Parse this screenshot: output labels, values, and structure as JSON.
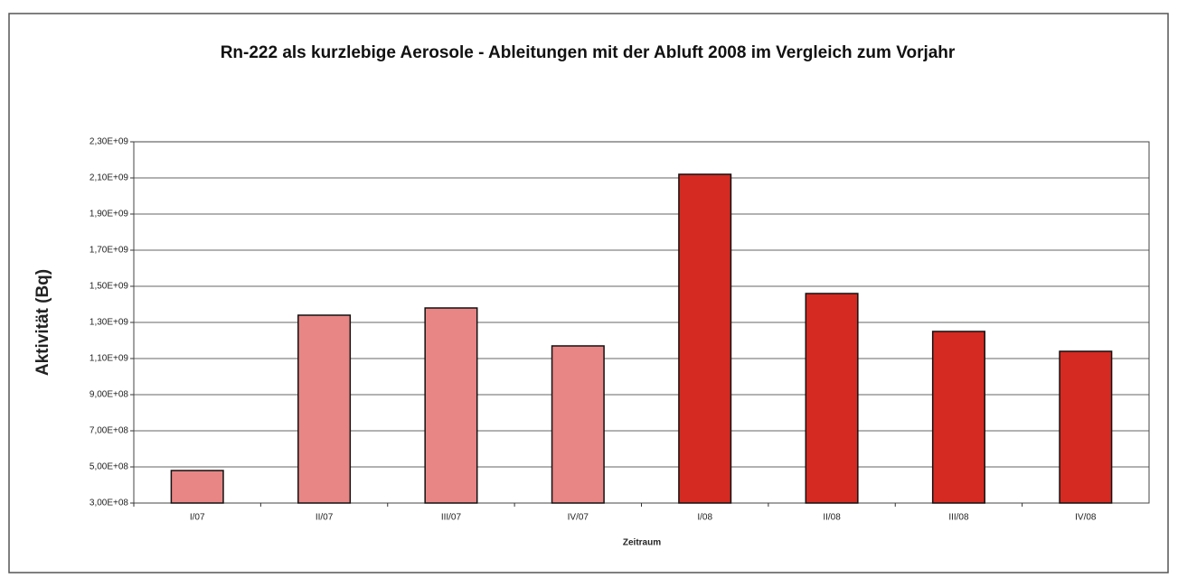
{
  "chart_data": {
    "type": "bar",
    "title": "Rn-222 als kurzlebige Aerosole - Ableitungen mit der Abluft 2008 im Vergleich zum Vorjahr",
    "x_label": "Zeitraum",
    "y_label": "Aktivität (Bq)",
    "categories": [
      "I/07",
      "II/07",
      "III/07",
      "IV/07",
      "I/08",
      "II/08",
      "III/08",
      "IV/08"
    ],
    "values": [
      480000000,
      1340000000,
      1380000000,
      1170000000,
      2120000000,
      1460000000,
      1250000000,
      1140000000
    ],
    "colors": [
      "#e88585",
      "#e88585",
      "#e88585",
      "#e88585",
      "#d42a22",
      "#d42a22",
      "#d42a22",
      "#d42a22"
    ],
    "ylim": [
      300000000,
      2300000000
    ],
    "yticks": [
      {
        "value": 300000000,
        "label": "3,00E+08"
      },
      {
        "value": 500000000,
        "label": "5,00E+08"
      },
      {
        "value": 700000000,
        "label": "7,00E+08"
      },
      {
        "value": 900000000,
        "label": "9,00E+08"
      },
      {
        "value": 1100000000,
        "label": "1,10E+09"
      },
      {
        "value": 1300000000,
        "label": "1,30E+09"
      },
      {
        "value": 1500000000,
        "label": "1,50E+09"
      },
      {
        "value": 1700000000,
        "label": "1,70E+09"
      },
      {
        "value": 1900000000,
        "label": "1,90E+09"
      },
      {
        "value": 2100000000,
        "label": "2,10E+09"
      },
      {
        "value": 2300000000,
        "label": "2,30E+09"
      }
    ],
    "grid": true
  }
}
